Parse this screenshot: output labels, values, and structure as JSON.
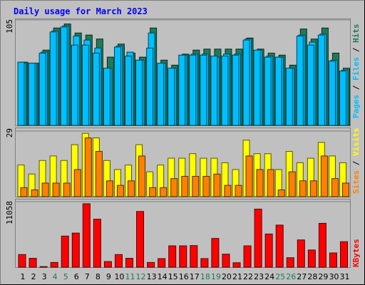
{
  "chart_data": {
    "type": "bar",
    "title": "Daily usage for March 2023",
    "categories": [
      "1",
      "2",
      "3",
      "4",
      "5",
      "6",
      "7",
      "8",
      "9",
      "10",
      "11",
      "12",
      "13",
      "14",
      "15",
      "16",
      "17",
      "18",
      "19",
      "20",
      "21",
      "22",
      "23",
      "24",
      "25",
      "26",
      "27",
      "28",
      "29",
      "30",
      "31"
    ],
    "weekend_days": [
      "4",
      "5",
      "11",
      "12",
      "18",
      "19",
      "25",
      "26"
    ],
    "panels": [
      {
        "id": "top",
        "max_label": "105",
        "ylim": [
          0,
          105
        ],
        "series": [
          {
            "name": "Hits",
            "color": "#1f7a58",
            "values": [
              63,
              62,
              75,
              97,
              101,
              92,
              90,
              86,
              68,
              81,
              72,
              68,
              97,
              65,
              60,
              71,
              75,
              76,
              76,
              76,
              76,
              87,
              76,
              72,
              70,
              60,
              96,
              86,
              97,
              72,
              57
            ]
          },
          {
            "name": "Files",
            "color": "#00bfff",
            "values": [
              62,
              62,
              73,
              94,
              99,
              89,
              85,
              77,
              57,
              79,
              73,
              65,
              92,
              62,
              57,
              70,
              71,
              71,
              68,
              71,
              71,
              86,
              75,
              69,
              68,
              57,
              90,
              83,
              91,
              65,
              55
            ]
          },
          {
            "name": "Pages",
            "color": "#00bfff",
            "values": [
              63,
              62,
              72,
              93,
              98,
              80,
              80,
              72,
              57,
              78,
              69,
              65,
              77,
              62,
              57,
              70,
              70,
              70,
              69,
              69,
              70,
              85,
              75,
              68,
              68,
              57,
              89,
              80,
              90,
              64,
              54
            ]
          }
        ],
        "legend": [
          "Pages",
          "Files",
          "Hits"
        ]
      },
      {
        "id": "middle",
        "max_label": "29",
        "ylim": [
          0,
          29
        ],
        "series": [
          {
            "name": "Visits",
            "color": "#ffff00",
            "values": [
              14,
              10,
              16,
              18,
              16,
              23,
              28,
              26,
              16,
              12,
              14,
              23,
              11,
              14,
              17,
              17,
              19,
              17,
              17,
              15,
              12,
              25,
              19,
              19,
              12,
              20,
              15,
              17,
              24,
              18,
              15
            ]
          },
          {
            "name": "Sites",
            "color": "#ff8000",
            "values": [
              4,
              3,
              6,
              6,
              6,
              12,
              26,
              20,
              7,
              5,
              7,
              18,
              4,
              4,
              8,
              9,
              9,
              9,
              10,
              5,
              5,
              18,
              12,
              12,
              3,
              11,
              7,
              7,
              18,
              8,
              6
            ]
          }
        ],
        "legend": [
          "Sites",
          "Visits"
        ]
      },
      {
        "id": "bottom",
        "max_label": "11058",
        "ylim": [
          0,
          11058
        ],
        "series": [
          {
            "name": "KBytes",
            "color": "#ff0000",
            "values": [
              2130,
              1500,
              100,
              800,
              5250,
              5750,
              10700,
              8100,
              950,
              2130,
              1500,
              9400,
              800,
              1450,
              3600,
              3600,
              3650,
              1450,
              4850,
              2200,
              750,
              3600,
              9800,
              5600,
              7100,
              1600,
              4600,
              2900,
              7400,
              2400,
              4300
            ]
          }
        ],
        "legend": [
          "KBytes"
        ]
      }
    ]
  }
}
